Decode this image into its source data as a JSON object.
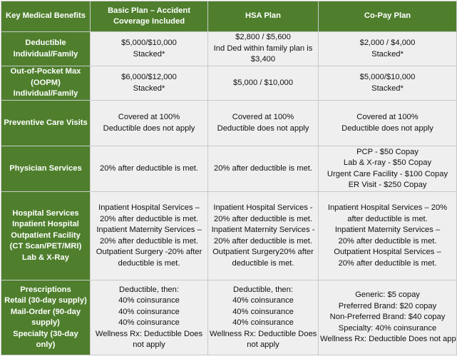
{
  "colors": {
    "header_bg": "#4f7f2d",
    "header_text": "#ffffff",
    "cell_bg": "#efefef",
    "border": "#c9c9c9"
  },
  "headers": {
    "benefit": "Key Medical Benefits",
    "basic": "Basic Plan – Accident Coverage Included",
    "hsa": "HSA Plan",
    "copay": "Co-Pay Plan"
  },
  "rows": [
    {
      "label": "Deductible Individual/Family",
      "basic": [
        "$5,000/$10,000",
        "Stacked*"
      ],
      "hsa": [
        "$2,800 / $5,600",
        "Ind Ded within family plan is",
        "$3,400"
      ],
      "copay": [
        "$2,000 / $4,000",
        "Stacked*"
      ]
    },
    {
      "label": "Out-of-Pocket Max (OOPM) Individual/Family",
      "basic": [
        "$6,000/$12,000",
        "Stacked*"
      ],
      "hsa": [
        "$5,000 / $10,000"
      ],
      "copay": [
        "$5,000/$10,000",
        "Stacked*"
      ]
    },
    {
      "label": "Preventive Care Visits",
      "basic": [
        "Covered at 100%",
        "Deductible does not apply"
      ],
      "hsa": [
        "Covered at 100%",
        "Deductible does not apply"
      ],
      "copay": [
        "Covered at 100%",
        "Deductible does not apply"
      ]
    },
    {
      "label": "Physician Services",
      "basic": [
        "20%  after deductible is met."
      ],
      "hsa": [
        "20% after deductible is met."
      ],
      "copay": [
        "PCP - $50 Copay",
        "Lab & X-ray - $50 Copay",
        "Urgent Care Facility - $100 Copay",
        "ER Visit - $250 Copay"
      ]
    },
    {
      "label": "Hospital Services Inpatient Hospital Outpatient Facility (CT Scan/PET/MRI) Lab & X-Ray",
      "label_lines": [
        "Hospital Services",
        "Inpatient Hospital",
        "Outpatient Facility",
        "(CT Scan/PET/MRI)",
        "Lab & X-Ray"
      ],
      "basic": [
        "Inpatient Hospital Services –",
        "20% after deductible is met.",
        "Inpatient Maternity Services –",
        "20% after deductible is met.",
        "Outpatient Surgery -20%  after",
        "deductible is met."
      ],
      "hsa": [
        "Inpatient Hospital Services -",
        "20% after deductible is met.",
        "Inpatient Maternity Services -",
        "20% after deductible is met.",
        "Outpatient Surgery20% after",
        "deductible is met."
      ],
      "copay": [
        "Inpatient Hospital Services – 20%",
        "after deductible is met.",
        "Inpatient Maternity Services –",
        "20% after deductible is met.",
        "Outpatient Hospital Services –",
        "20% after deductible is met."
      ]
    },
    {
      "label": "Prescriptions Retail (30-day supply) Mail-Order (90-day supply) Specialty (30-day only)",
      "label_lines": [
        "Prescriptions",
        "Retail (30-day supply)",
        "Mail-Order (90-day",
        "supply)",
        "Specialty (30-day",
        "only)"
      ],
      "basic": [
        "Deductible, then:",
        "40% coinsurance",
        "40% coinsurance",
        "40% coinsurance",
        "Wellness Rx: Deductible Does",
        "not apply"
      ],
      "hsa": [
        "Deductible, then:",
        "40% coinsurance",
        "40% coinsurance",
        "40% coinsurance",
        "Wellness Rx: Deductible Does",
        "not apply"
      ],
      "copay": [
        "Generic: $5 copay",
        "Preferred Brand: $20 copay",
        "Non-Preferred Brand: $40 copay",
        "Specialty: 40% coinsurance",
        "Wellness Rx: Deductible Does not apply"
      ]
    }
  ]
}
